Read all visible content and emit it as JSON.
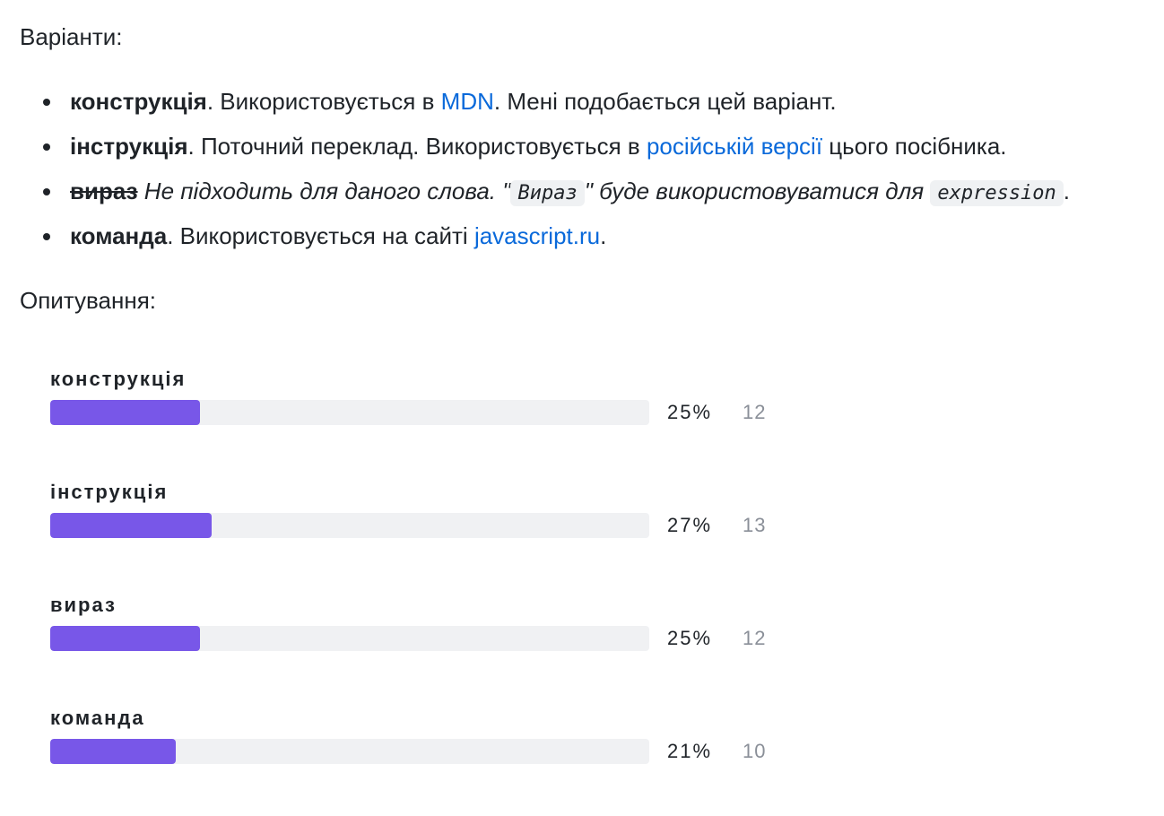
{
  "variants_heading": "Варіанти:",
  "options": [
    {
      "term": "конструкція",
      "segments": [
        {
          "type": "text",
          "text": ". Використовується в "
        },
        {
          "type": "link",
          "text": "MDN"
        },
        {
          "type": "text",
          "text": ". Мені подобається цей варіант."
        }
      ]
    },
    {
      "term": "інструкція",
      "segments": [
        {
          "type": "text",
          "text": ". Поточний переклад. Використовується в "
        },
        {
          "type": "link",
          "text": "російській версії"
        },
        {
          "type": "text",
          "text": " цього посібника."
        }
      ]
    },
    {
      "term": "вираз",
      "strikethrough": true,
      "segments": [
        {
          "type": "italic",
          "text": " Не підходить для даного слова. \""
        },
        {
          "type": "code",
          "text": "Вираз"
        },
        {
          "type": "italic",
          "text": "\" буде використовуватися для "
        },
        {
          "type": "code",
          "text": "expression"
        },
        {
          "type": "text",
          "text": "."
        }
      ]
    },
    {
      "term": "команда",
      "segments": [
        {
          "type": "text",
          "text": ". Використовується на сайті "
        },
        {
          "type": "link",
          "text": "javascript.ru"
        },
        {
          "type": "text",
          "text": "."
        }
      ]
    }
  ],
  "poll_heading": "Опитування:",
  "poll": [
    {
      "label": "конструкція",
      "percent_text": "25%",
      "percent": 25,
      "count": "12"
    },
    {
      "label": "інструкція",
      "percent_text": "27%",
      "percent": 27,
      "count": "13"
    },
    {
      "label": "вираз",
      "percent_text": "25%",
      "percent": 25,
      "count": "12"
    },
    {
      "label": "команда",
      "percent_text": "21%",
      "percent": 21,
      "count": "10"
    }
  ],
  "colors": {
    "link": "#0969da",
    "bar_fill": "#7857e8",
    "bar_track": "#f0f1f3",
    "count_text": "#8a8f98"
  }
}
